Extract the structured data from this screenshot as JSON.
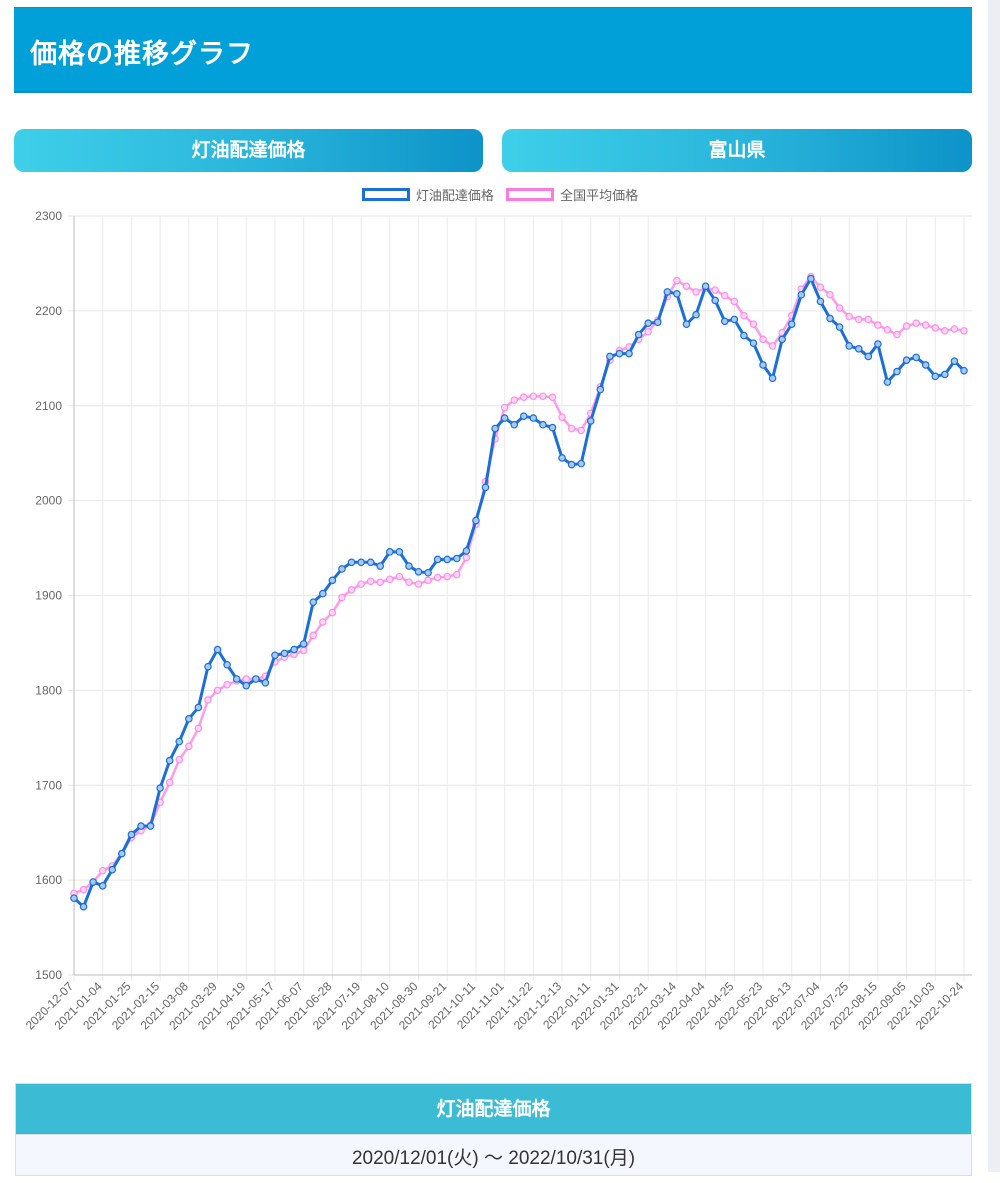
{
  "header": {
    "title": "価格の推移グラフ"
  },
  "selectors": {
    "fuel_type": "灯油配達価格",
    "prefecture": "富山県"
  },
  "legend": [
    {
      "label": "灯油配達価格",
      "color": "#1a6fd9"
    },
    {
      "label": "全国平均価格",
      "color": "#ff7ae0"
    }
  ],
  "table": {
    "header": "灯油配達価格",
    "period": "2020/12/01(火) 〜 2022/10/31(月)"
  },
  "chart_data": {
    "type": "line",
    "title": "",
    "xlabel": "",
    "ylabel": "",
    "ylim": [
      1500,
      2300
    ],
    "yticks": [
      1500,
      1600,
      1700,
      1800,
      1900,
      2000,
      2100,
      2200,
      2300
    ],
    "grid": true,
    "legend_position": "top",
    "x_tick_labels": [
      "2020-12-07",
      "2021-01-04",
      "2021-01-25",
      "2021-02-15",
      "2021-03-08",
      "2021-03-29",
      "2021-04-19",
      "2021-05-17",
      "2021-06-07",
      "2021-06-28",
      "2021-07-19",
      "2021-08-10",
      "2021-08-30",
      "2021-09-21",
      "2021-10-11",
      "2021-11-01",
      "2021-11-22",
      "2021-12-13",
      "2022-01-11",
      "2022-01-31",
      "2022-02-21",
      "2022-03-14",
      "2022-04-04",
      "2022-04-25",
      "2022-05-23",
      "2022-06-13",
      "2022-07-04",
      "2022-07-25",
      "2022-08-15",
      "2022-09-05",
      "2022-10-03",
      "2022-10-24"
    ],
    "series": [
      {
        "name": "灯油配達価格",
        "color": "#1a6fd9",
        "values": [
          1581,
          1572,
          1598,
          1594,
          1611,
          1628,
          1648,
          1657,
          1657,
          1697,
          1726,
          1746,
          1770,
          1782,
          1825,
          1843,
          1827,
          1812,
          1805,
          1812,
          1808,
          1837,
          1839,
          1843,
          1849,
          1893,
          1902,
          1916,
          1928,
          1935,
          1935,
          1935,
          1931,
          1946,
          1946,
          1931,
          1925,
          1924,
          1938,
          1938,
          1939,
          1947,
          1979,
          2014,
          2076,
          2087,
          2080,
          2089,
          2087,
          2080,
          2077,
          2045,
          2038,
          2039,
          2084,
          2117,
          2152,
          2155,
          2155,
          2175,
          2187,
          2188,
          2220,
          2218,
          2186,
          2196,
          2226,
          2211,
          2189,
          2191,
          2174,
          2166,
          2143,
          2129,
          2170,
          2186,
          2217,
          2234,
          2210,
          2192,
          2183,
          2163,
          2160,
          2152,
          2165,
          2125,
          2136,
          2148,
          2151,
          2143,
          2131,
          2133,
          2147,
          2137
        ]
      },
      {
        "name": "全国平均価格",
        "color": "#ff7ae0",
        "values": [
          1586,
          1590,
          1598,
          1610,
          1615,
          1628,
          1645,
          1652,
          1658,
          1682,
          1703,
          1727,
          1741,
          1760,
          1790,
          1800,
          1806,
          1810,
          1812,
          1812,
          1815,
          1830,
          1835,
          1838,
          1842,
          1858,
          1872,
          1882,
          1898,
          1906,
          1912,
          1915,
          1914,
          1917,
          1920,
          1914,
          1912,
          1916,
          1919,
          1920,
          1922,
          1940,
          1975,
          2020,
          2065,
          2098,
          2106,
          2109,
          2110,
          2110,
          2109,
          2088,
          2076,
          2074,
          2092,
          2120,
          2148,
          2158,
          2162,
          2170,
          2178,
          2190,
          2215,
          2232,
          2226,
          2220,
          2224,
          2222,
          2216,
          2210,
          2195,
          2186,
          2170,
          2163,
          2177,
          2195,
          2223,
          2236,
          2225,
          2217,
          2203,
          2194,
          2191,
          2191,
          2185,
          2180,
          2175,
          2184,
          2187,
          2185,
          2182,
          2179,
          2181,
          2179
        ]
      }
    ]
  }
}
